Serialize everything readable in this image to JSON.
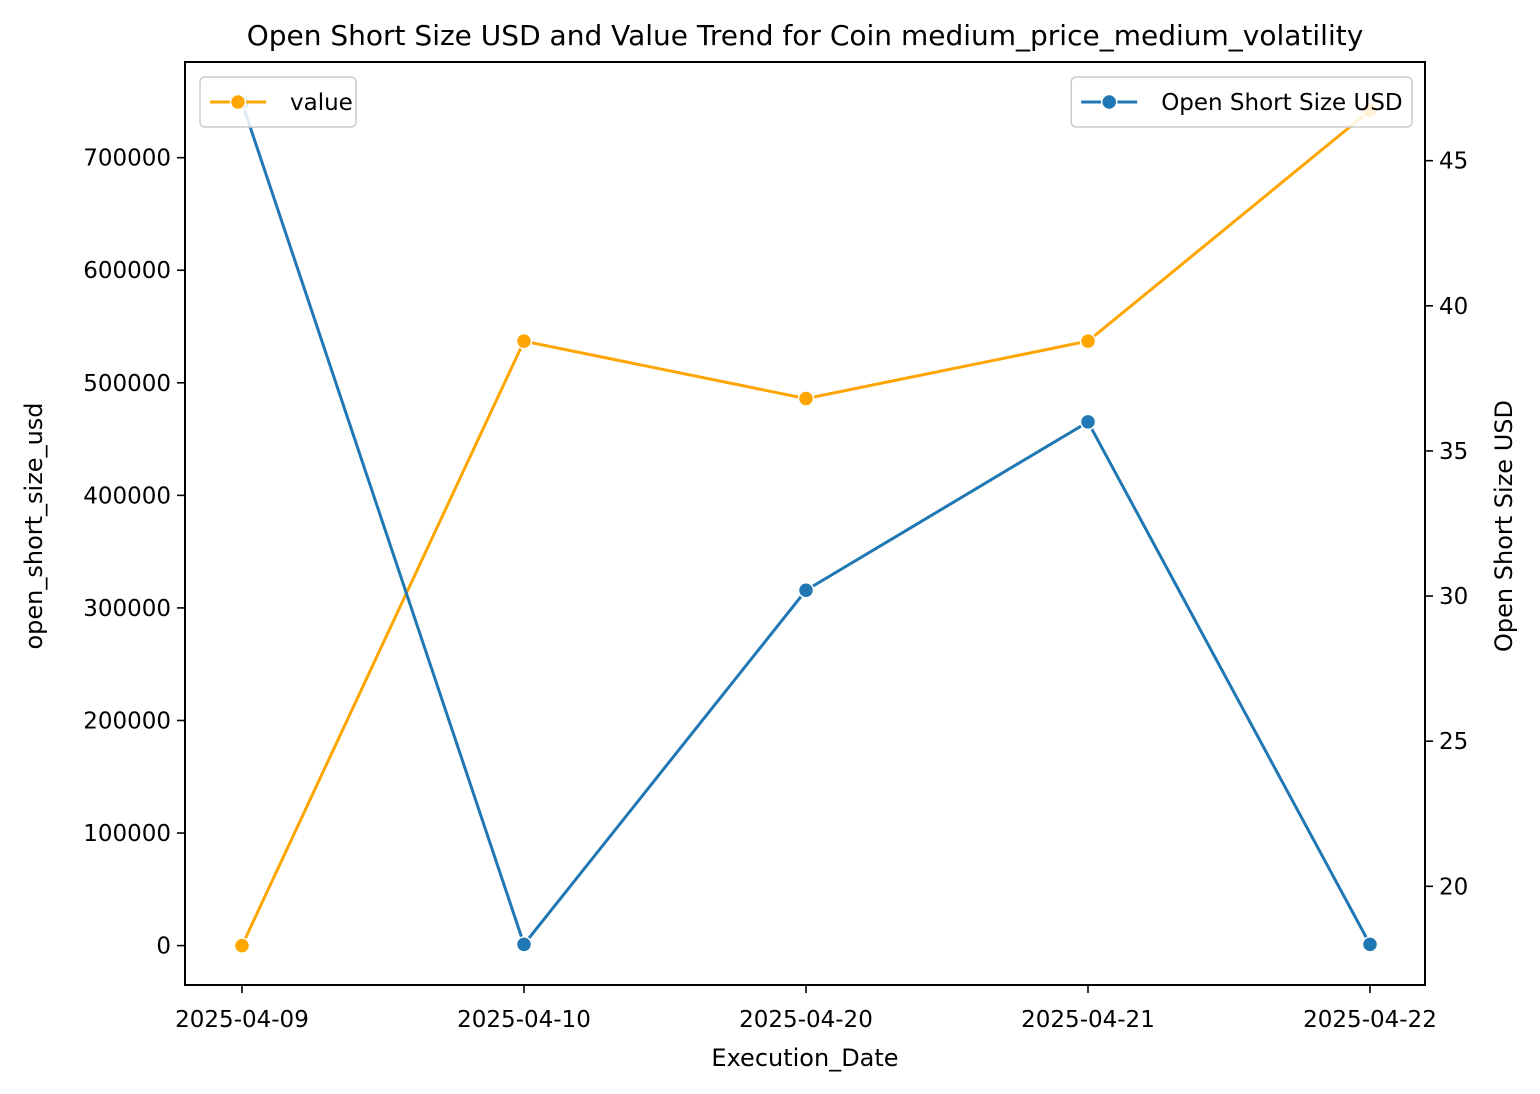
{
  "chart_data": {
    "type": "line",
    "title": "Open Short Size USD and Value Trend for Coin medium_price_medium_volatility",
    "xlabel": "Execution_Date",
    "ylabel_left": "open_short_size_usd",
    "ylabel_right": "Open Short Size USD",
    "categories": [
      "2025-04-09",
      "2025-04-10",
      "2025-04-20",
      "2025-04-21",
      "2025-04-22"
    ],
    "y_left": {
      "lim": [
        -35000,
        785000
      ],
      "ticks": [
        0,
        100000,
        200000,
        300000,
        400000,
        500000,
        600000,
        700000
      ]
    },
    "y_right": {
      "lim": [
        16.6,
        48.4
      ],
      "ticks": [
        20,
        25,
        30,
        35,
        40,
        45
      ]
    },
    "grid": false,
    "series": [
      {
        "name": "value",
        "axis": "left",
        "color": "#FFA500",
        "legend_position": "upper-left",
        "values": [
          0,
          537000,
          486000,
          537000,
          742000
        ]
      },
      {
        "name": "Open Short Size USD",
        "axis": "right",
        "color": "#1F77B4",
        "legend_position": "upper-right",
        "values": [
          47.0,
          18.0,
          30.2,
          36.0,
          18.0
        ]
      }
    ]
  }
}
